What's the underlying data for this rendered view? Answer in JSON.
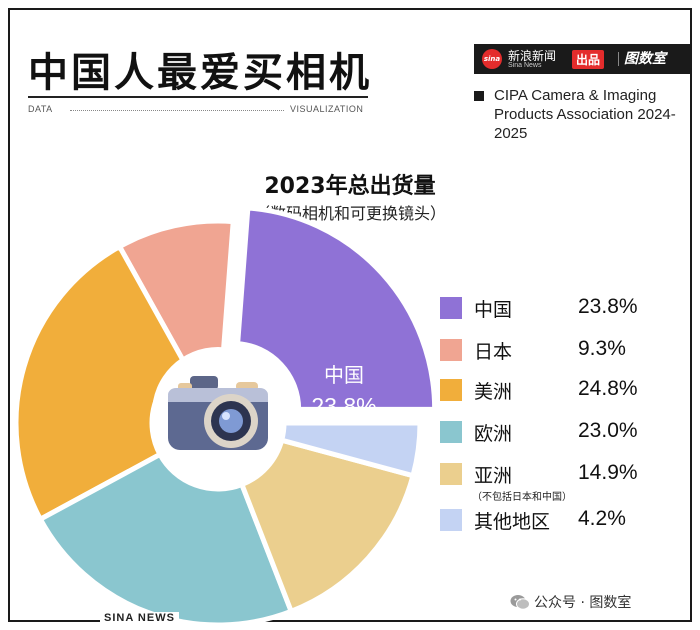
{
  "header": {
    "title": "中国人最爱买相机",
    "data_label": "DATA",
    "viz_label": "VISUALIZATION"
  },
  "brand": {
    "logo_text": "sina",
    "name": "新浪新闻",
    "name_en": "Sina News",
    "out_label": "出品",
    "partner": "图数室"
  },
  "source": {
    "text": "CIPA Camera & Imaging Products Association 2024-2025"
  },
  "chart_data": {
    "type": "pie",
    "title": "2023年总出货量",
    "subtitle": "（数码相机和可更换镜头）",
    "categories": [
      "中国",
      "日本",
      "美洲",
      "欧洲",
      "亚洲",
      "其他地区"
    ],
    "values": [
      23.8,
      9.3,
      24.8,
      23.0,
      14.9,
      4.2
    ],
    "value_labels": [
      "23.8%",
      "9.3%",
      "24.8%",
      "23.0%",
      "14.9%",
      "4.2%"
    ],
    "colors": [
      "#8f72d6",
      "#f0a592",
      "#f1ae3b",
      "#8ac6cf",
      "#ebcf8e",
      "#c4d3f3"
    ],
    "highlight": {
      "index": 0,
      "label": "中国",
      "value_label": "23.8%"
    },
    "legend_note": "（不包括日本和中国）",
    "legend_position": "right",
    "start_angle_deg": 0,
    "direction": "counterclockwise"
  },
  "footer": {
    "left": "SINA NEWS",
    "right": "公众号 · 图数室"
  },
  "colors": {
    "text": "#111111",
    "brand_red": "#e42c2c",
    "brand_dark": "#1a1a1a"
  }
}
